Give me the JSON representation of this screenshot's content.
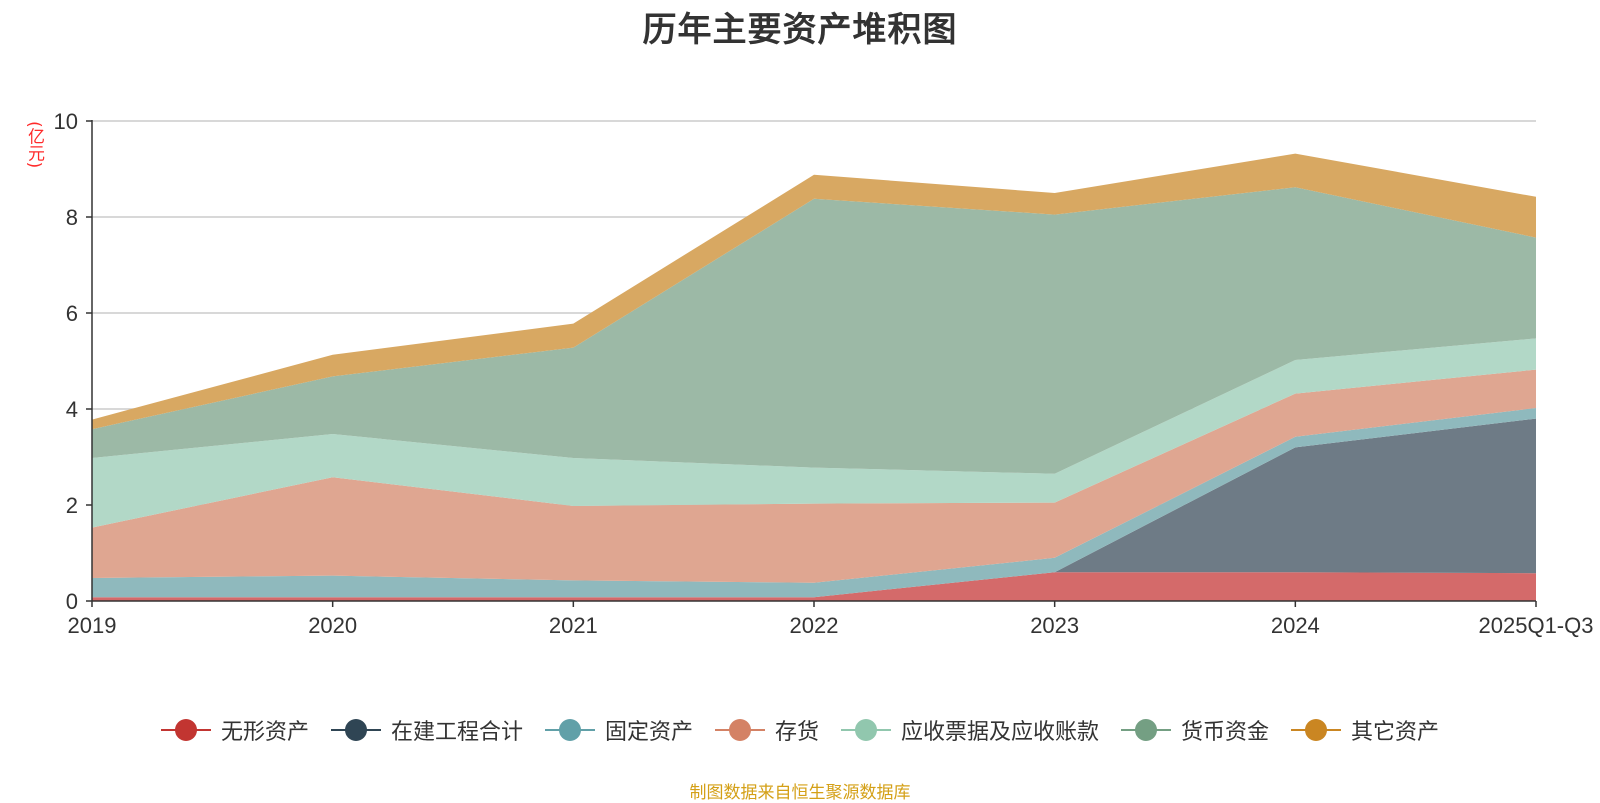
{
  "chart_data": {
    "type": "area",
    "stacked": true,
    "title": "历年主要资产堆积图",
    "ylabel": "(亿元)",
    "xlabel": "",
    "categories": [
      "2019",
      "2020",
      "2021",
      "2022",
      "2023",
      "2024",
      "2025Q1-Q3"
    ],
    "ylim": [
      0,
      10
    ],
    "yticks": [
      0,
      2,
      4,
      6,
      8,
      10
    ],
    "grid": true,
    "legend_position": "bottom",
    "series": [
      {
        "name": "无形资产",
        "color": "#c23531",
        "fill": "#d46a6a",
        "values": [
          0.08,
          0.08,
          0.08,
          0.08,
          0.6,
          0.6,
          0.58
        ]
      },
      {
        "name": "在建工程合计",
        "color": "#2f4554",
        "fill": "#6e7b86",
        "values": [
          0,
          0,
          0,
          0,
          0,
          2.6,
          3.22
        ]
      },
      {
        "name": "固定资产",
        "color": "#61a0a8",
        "fill": "#8fb9bd",
        "values": [
          0.4,
          0.45,
          0.35,
          0.3,
          0.3,
          0.22,
          0.22
        ]
      },
      {
        "name": "存货",
        "color": "#d48265",
        "fill": "#dfa691",
        "values": [
          1.05,
          2.05,
          1.55,
          1.65,
          1.15,
          0.9,
          0.8
        ]
      },
      {
        "name": "应收票据及应收账款",
        "color": "#91c7ae",
        "fill": "#b2d8c7",
        "values": [
          1.45,
          0.9,
          1.0,
          0.75,
          0.6,
          0.7,
          0.65
        ]
      },
      {
        "name": "货币资金",
        "color": "#749f83",
        "fill": "#9cb9a6",
        "values": [
          0.6,
          1.2,
          2.3,
          5.6,
          5.4,
          3.6,
          2.1
        ]
      },
      {
        "name": "其它资产",
        "color": "#ca8622",
        "fill": "#d8a862",
        "values": [
          0.2,
          0.45,
          0.5,
          0.5,
          0.45,
          0.7,
          0.85
        ]
      }
    ]
  },
  "source_note": "制图数据来自恒生聚源数据库"
}
